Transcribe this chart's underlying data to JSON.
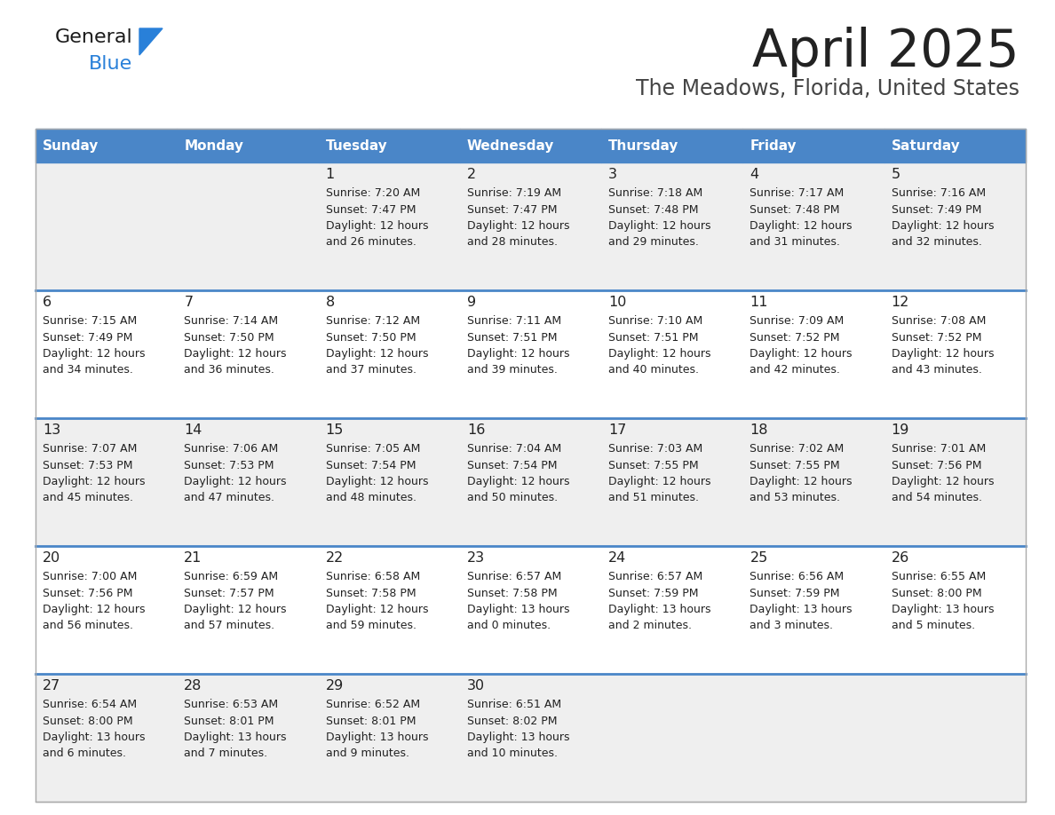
{
  "title": "April 2025",
  "subtitle": "The Meadows, Florida, United States",
  "header_bg": "#4a86c8",
  "header_text_color": "#ffffff",
  "row_bg_light": "#efefef",
  "row_bg_white": "#ffffff",
  "day_names": [
    "Sunday",
    "Monday",
    "Tuesday",
    "Wednesday",
    "Thursday",
    "Friday",
    "Saturday"
  ],
  "weeks": [
    [
      {
        "day": "",
        "sunrise": "",
        "sunset": "",
        "daylight": ""
      },
      {
        "day": "",
        "sunrise": "",
        "sunset": "",
        "daylight": ""
      },
      {
        "day": "1",
        "sunrise": "Sunrise: 7:20 AM",
        "sunset": "Sunset: 7:47 PM",
        "daylight": "Daylight: 12 hours\nand 26 minutes."
      },
      {
        "day": "2",
        "sunrise": "Sunrise: 7:19 AM",
        "sunset": "Sunset: 7:47 PM",
        "daylight": "Daylight: 12 hours\nand 28 minutes."
      },
      {
        "day": "3",
        "sunrise": "Sunrise: 7:18 AM",
        "sunset": "Sunset: 7:48 PM",
        "daylight": "Daylight: 12 hours\nand 29 minutes."
      },
      {
        "day": "4",
        "sunrise": "Sunrise: 7:17 AM",
        "sunset": "Sunset: 7:48 PM",
        "daylight": "Daylight: 12 hours\nand 31 minutes."
      },
      {
        "day": "5",
        "sunrise": "Sunrise: 7:16 AM",
        "sunset": "Sunset: 7:49 PM",
        "daylight": "Daylight: 12 hours\nand 32 minutes."
      }
    ],
    [
      {
        "day": "6",
        "sunrise": "Sunrise: 7:15 AM",
        "sunset": "Sunset: 7:49 PM",
        "daylight": "Daylight: 12 hours\nand 34 minutes."
      },
      {
        "day": "7",
        "sunrise": "Sunrise: 7:14 AM",
        "sunset": "Sunset: 7:50 PM",
        "daylight": "Daylight: 12 hours\nand 36 minutes."
      },
      {
        "day": "8",
        "sunrise": "Sunrise: 7:12 AM",
        "sunset": "Sunset: 7:50 PM",
        "daylight": "Daylight: 12 hours\nand 37 minutes."
      },
      {
        "day": "9",
        "sunrise": "Sunrise: 7:11 AM",
        "sunset": "Sunset: 7:51 PM",
        "daylight": "Daylight: 12 hours\nand 39 minutes."
      },
      {
        "day": "10",
        "sunrise": "Sunrise: 7:10 AM",
        "sunset": "Sunset: 7:51 PM",
        "daylight": "Daylight: 12 hours\nand 40 minutes."
      },
      {
        "day": "11",
        "sunrise": "Sunrise: 7:09 AM",
        "sunset": "Sunset: 7:52 PM",
        "daylight": "Daylight: 12 hours\nand 42 minutes."
      },
      {
        "day": "12",
        "sunrise": "Sunrise: 7:08 AM",
        "sunset": "Sunset: 7:52 PM",
        "daylight": "Daylight: 12 hours\nand 43 minutes."
      }
    ],
    [
      {
        "day": "13",
        "sunrise": "Sunrise: 7:07 AM",
        "sunset": "Sunset: 7:53 PM",
        "daylight": "Daylight: 12 hours\nand 45 minutes."
      },
      {
        "day": "14",
        "sunrise": "Sunrise: 7:06 AM",
        "sunset": "Sunset: 7:53 PM",
        "daylight": "Daylight: 12 hours\nand 47 minutes."
      },
      {
        "day": "15",
        "sunrise": "Sunrise: 7:05 AM",
        "sunset": "Sunset: 7:54 PM",
        "daylight": "Daylight: 12 hours\nand 48 minutes."
      },
      {
        "day": "16",
        "sunrise": "Sunrise: 7:04 AM",
        "sunset": "Sunset: 7:54 PM",
        "daylight": "Daylight: 12 hours\nand 50 minutes."
      },
      {
        "day": "17",
        "sunrise": "Sunrise: 7:03 AM",
        "sunset": "Sunset: 7:55 PM",
        "daylight": "Daylight: 12 hours\nand 51 minutes."
      },
      {
        "day": "18",
        "sunrise": "Sunrise: 7:02 AM",
        "sunset": "Sunset: 7:55 PM",
        "daylight": "Daylight: 12 hours\nand 53 minutes."
      },
      {
        "day": "19",
        "sunrise": "Sunrise: 7:01 AM",
        "sunset": "Sunset: 7:56 PM",
        "daylight": "Daylight: 12 hours\nand 54 minutes."
      }
    ],
    [
      {
        "day": "20",
        "sunrise": "Sunrise: 7:00 AM",
        "sunset": "Sunset: 7:56 PM",
        "daylight": "Daylight: 12 hours\nand 56 minutes."
      },
      {
        "day": "21",
        "sunrise": "Sunrise: 6:59 AM",
        "sunset": "Sunset: 7:57 PM",
        "daylight": "Daylight: 12 hours\nand 57 minutes."
      },
      {
        "day": "22",
        "sunrise": "Sunrise: 6:58 AM",
        "sunset": "Sunset: 7:58 PM",
        "daylight": "Daylight: 12 hours\nand 59 minutes."
      },
      {
        "day": "23",
        "sunrise": "Sunrise: 6:57 AM",
        "sunset": "Sunset: 7:58 PM",
        "daylight": "Daylight: 13 hours\nand 0 minutes."
      },
      {
        "day": "24",
        "sunrise": "Sunrise: 6:57 AM",
        "sunset": "Sunset: 7:59 PM",
        "daylight": "Daylight: 13 hours\nand 2 minutes."
      },
      {
        "day": "25",
        "sunrise": "Sunrise: 6:56 AM",
        "sunset": "Sunset: 7:59 PM",
        "daylight": "Daylight: 13 hours\nand 3 minutes."
      },
      {
        "day": "26",
        "sunrise": "Sunrise: 6:55 AM",
        "sunset": "Sunset: 8:00 PM",
        "daylight": "Daylight: 13 hours\nand 5 minutes."
      }
    ],
    [
      {
        "day": "27",
        "sunrise": "Sunrise: 6:54 AM",
        "sunset": "Sunset: 8:00 PM",
        "daylight": "Daylight: 13 hours\nand 6 minutes."
      },
      {
        "day": "28",
        "sunrise": "Sunrise: 6:53 AM",
        "sunset": "Sunset: 8:01 PM",
        "daylight": "Daylight: 13 hours\nand 7 minutes."
      },
      {
        "day": "29",
        "sunrise": "Sunrise: 6:52 AM",
        "sunset": "Sunset: 8:01 PM",
        "daylight": "Daylight: 13 hours\nand 9 minutes."
      },
      {
        "day": "30",
        "sunrise": "Sunrise: 6:51 AM",
        "sunset": "Sunset: 8:02 PM",
        "daylight": "Daylight: 13 hours\nand 10 minutes."
      },
      {
        "day": "",
        "sunrise": "",
        "sunset": "",
        "daylight": ""
      },
      {
        "day": "",
        "sunrise": "",
        "sunset": "",
        "daylight": ""
      },
      {
        "day": "",
        "sunrise": "",
        "sunset": "",
        "daylight": ""
      }
    ]
  ],
  "logo_color_general": "#1a1a1a",
  "logo_color_blue": "#2980d9",
  "logo_triangle_color": "#2980d9",
  "title_color": "#222222",
  "subtitle_color": "#444444",
  "divider_color": "#4a86c8",
  "cell_text_color": "#222222",
  "day_number_color": "#222222",
  "week_row_colors": [
    "#efefef",
    "#ffffff",
    "#efefef",
    "#ffffff",
    "#efefef"
  ]
}
